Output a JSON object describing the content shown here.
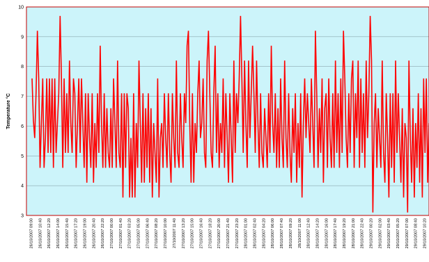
{
  "chart_data": {
    "type": "line",
    "title": "",
    "xlabel": "",
    "ylabel": "Temperature °C",
    "ylim": [
      3,
      10
    ],
    "yticks": [
      3,
      4,
      5,
      6,
      7,
      8,
      9,
      10
    ],
    "grid": true,
    "legend": "none",
    "colors": {
      "plot_background": "#ccf4fa",
      "frame": "#c00000",
      "grid": "#8aa8b0",
      "series": "#ff0000"
    },
    "x_tick_labels": [
      "26/10/2007 09:00",
      "26/10/2007 10:40",
      "26/10/2007 12:20",
      "26/10/2007 14:00",
      "26/10/2007 15:40",
      "26/10/2007 17:20",
      "26/10/2007 19:00",
      "26/10/2007 20:40",
      "26/10/2007 22:20",
      "27/10/2007 00:00",
      "27/10/2007 01:40",
      "27/10/2007 03:20",
      "27/10/2007 05:00",
      "27/10/2007 06:40",
      "27/10/2007 08:20",
      "27/10/2007 10:00",
      "27/10/2007 11:40",
      "27/10/2007 13:20",
      "27/10/2007 15:00",
      "27/10/2007 16:40",
      "27/10/2007 18:20",
      "27/10/2007 20:00",
      "27/10/2007 21:40",
      "27/10/2007 23:20",
      "28/10/2007 01:00",
      "28/10/2007 02:40",
      "28/10/2007 04:20",
      "28/10/2007 06:00",
      "28/10/2007 07:40",
      "28/10/2007 09:20",
      "28/10/2007 11:00",
      "28/10/2007 12:40",
      "28/10/2007 14:20",
      "28/10/2007 16:00",
      "28/10/2007 17:40",
      "28/10/2007 19:20",
      "28/10/2007 21:00",
      "28/10/2007 22:40",
      "29/10/2007 00:20",
      "29/10/2007 02:00",
      "29/10/2007 03:40",
      "29/10/2007 05:20",
      "29/10/2007 07:00",
      "29/10/2007 08:40",
      "29/10/2007 10:20"
    ],
    "series": [
      {
        "values": [
          7.6,
          6.2,
          5.6,
          7.1,
          9.2,
          7.6,
          4.6,
          6.1,
          7.6,
          4.6,
          5.6,
          7.6,
          5.1,
          7.6,
          5.1,
          7.6,
          4.6,
          7.6,
          5.1,
          6.1,
          7.1,
          9.7,
          7.6,
          4.6,
          7.6,
          5.1,
          7.1,
          5.1,
          8.2,
          6.1,
          5.1,
          7.6,
          7.1,
          4.6,
          6.1,
          7.6,
          5.1,
          7.6,
          6.1,
          4.6,
          7.1,
          4.1,
          7.1,
          5.6,
          4.6,
          7.1,
          4.1,
          6.1,
          4.6,
          7.1,
          5.1,
          8.7,
          6.1,
          4.6,
          7.1,
          4.6,
          6.6,
          5.1,
          4.6,
          6.6,
          4.6,
          7.6,
          6.1,
          4.6,
          8.2,
          5.1,
          4.6,
          7.1,
          3.6,
          7.1,
          4.6,
          7.1,
          6.6,
          3.6,
          5.6,
          3.6,
          7.1,
          3.6,
          6.1,
          4.6,
          8.2,
          6.1,
          4.1,
          7.1,
          4.1,
          6.6,
          4.6,
          7.1,
          4.1,
          6.6,
          3.6,
          6.1,
          5.1,
          4.1,
          7.6,
          3.6,
          5.6,
          6.1,
          4.6,
          7.1,
          5.6,
          4.6,
          7.1,
          5.1,
          4.1,
          7.1,
          5.6,
          4.6,
          8.2,
          5.1,
          4.6,
          7.1,
          5.6,
          4.6,
          7.1,
          6.1,
          8.7,
          9.2,
          6.1,
          4.1,
          7.1,
          4.1,
          6.1,
          5.1,
          7.1,
          8.2,
          5.6,
          6.1,
          7.6,
          5.1,
          4.6,
          8.2,
          9.2,
          7.1,
          5.1,
          4.6,
          7.1,
          8.7,
          5.1,
          7.1,
          4.6,
          6.1,
          5.1,
          7.6,
          4.6,
          7.1,
          5.6,
          4.1,
          7.1,
          5.6,
          4.1,
          8.2,
          5.1,
          7.1,
          6.1,
          7.6,
          9.7,
          7.6,
          5.1,
          8.2,
          6.1,
          4.6,
          8.2,
          5.6,
          7.1,
          8.7,
          7.1,
          5.1,
          8.2,
          6.1,
          4.6,
          7.1,
          5.1,
          4.6,
          6.6,
          5.6,
          4.6,
          7.1,
          5.1,
          8.7,
          6.1,
          5.1,
          7.1,
          4.6,
          6.6,
          4.6,
          7.6,
          5.6,
          4.6,
          8.2,
          5.6,
          4.6,
          7.1,
          5.1,
          4.1,
          6.6,
          5.1,
          7.1,
          4.1,
          6.1,
          4.6,
          7.1,
          3.6,
          6.1,
          7.6,
          5.6,
          7.1,
          6.1,
          5.1,
          7.6,
          6.1,
          4.6,
          9.2,
          7.1,
          4.6,
          6.6,
          5.1,
          7.6,
          4.1,
          6.6,
          7.1,
          4.6,
          7.6,
          5.6,
          4.6,
          7.1,
          4.6,
          8.2,
          5.1,
          7.1,
          4.6,
          7.6,
          5.1,
          9.2,
          7.6,
          5.6,
          4.6,
          7.1,
          5.1,
          7.6,
          8.2,
          4.6,
          7.1,
          5.6,
          8.2,
          4.6,
          7.6,
          5.1,
          7.1,
          4.6,
          8.2,
          5.6,
          7.1,
          9.7,
          8.2,
          3.1,
          6.1,
          7.1,
          4.6,
          6.6,
          5.6,
          4.6,
          8.2,
          5.1,
          4.1,
          7.1,
          5.6,
          3.6,
          7.1,
          4.6,
          7.1,
          4.1,
          8.2,
          5.1,
          7.1,
          5.6,
          4.1,
          6.6,
          3.6,
          6.1,
          5.6,
          3.1,
          8.2,
          5.6,
          4.1,
          6.6,
          3.6,
          6.1,
          4.6,
          7.1,
          4.1,
          6.6,
          3.6,
          7.6,
          5.1,
          7.6,
          4.1,
          6.1
        ]
      }
    ]
  }
}
